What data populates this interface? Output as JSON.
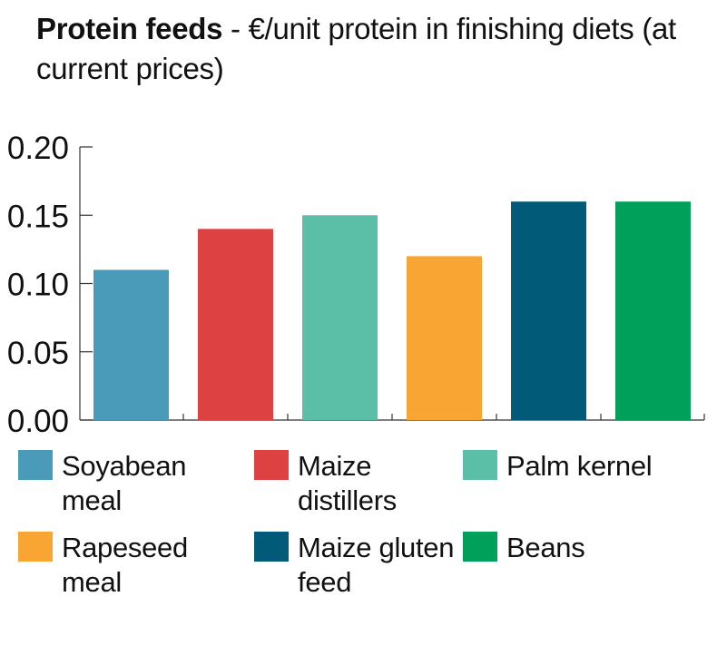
{
  "chart_data": {
    "type": "bar",
    "title_bold": "Protein feeds",
    "title_rest": " - €/unit protein in finishing diets (at current prices)",
    "xlabel": "",
    "ylabel": "",
    "ylim": [
      0,
      0.2
    ],
    "yticks": [
      "0.00",
      "0.05",
      "0.10",
      "0.15",
      "0.20"
    ],
    "categories": [
      "Soyabean meal",
      "Maize distillers",
      "Palm kernel",
      "Rapeseed meal",
      "Maize gluten feed",
      "Beans"
    ],
    "values": [
      0.11,
      0.14,
      0.15,
      0.12,
      0.16,
      0.16
    ],
    "colors": [
      "#4a9aba",
      "#de4141",
      "#5bbfa8",
      "#f9a533",
      "#015a78",
      "#00a05a"
    ],
    "legend": "bottom"
  }
}
